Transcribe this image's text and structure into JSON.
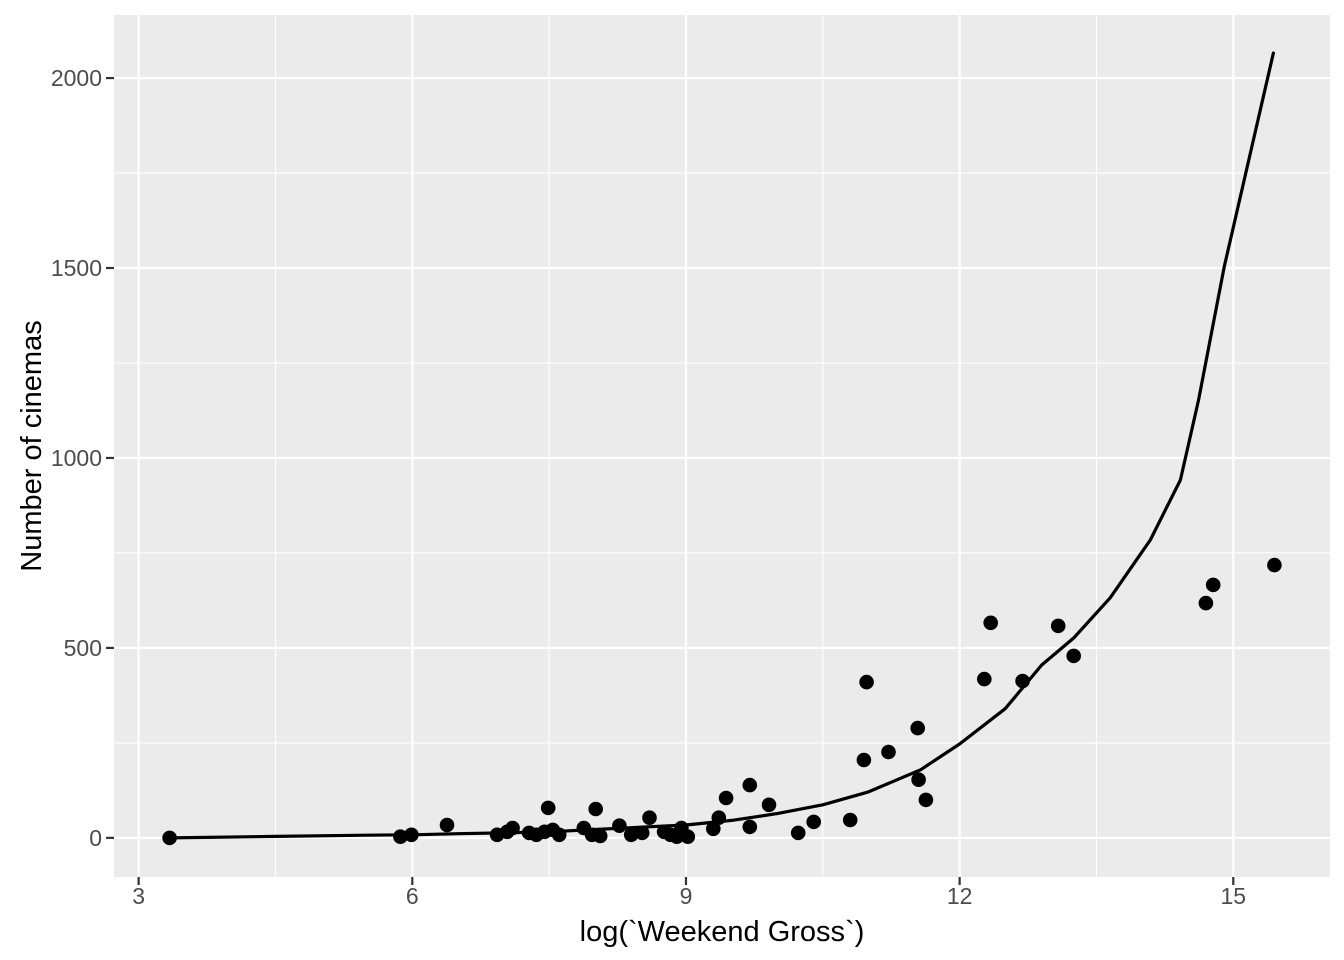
{
  "figure": {
    "background_color": "#FFFFFF",
    "panel_background_color": "#EBEBEB",
    "grid_color": "#FFFFFF",
    "point_color": "#000000",
    "smooth_line_color": "#000000",
    "tick_mark_color": "#333333",
    "tick_label_color": "#4D4D4D",
    "axis_title_color": "#000000"
  },
  "chart_data": {
    "type": "scatter",
    "title": "",
    "xlabel": "log(`Weekend Gross`)",
    "ylabel": "Number of cinemas",
    "legend": false,
    "grid": true,
    "x_major_ticks": [
      3,
      6,
      9,
      12,
      15
    ],
    "x_minor_ticks": [
      4.5,
      7.5,
      10.5,
      13.5
    ],
    "y_major_ticks": [
      0,
      500,
      1000,
      1500,
      2000
    ],
    "y_minor_ticks": [
      250,
      750,
      1250,
      1750
    ],
    "x_tick_labels": [
      "3",
      "6",
      "9",
      "12",
      "15"
    ],
    "y_tick_labels": [
      "0",
      "500",
      "1000",
      "1500",
      "2000"
    ],
    "xlim": [
      2.73,
      16.06
    ],
    "ylim": [
      -103,
      2166
    ],
    "points": [
      [
        3.34,
        0
      ],
      [
        5.87,
        3
      ],
      [
        5.99,
        8
      ],
      [
        6.38,
        34
      ],
      [
        6.93,
        8
      ],
      [
        7.04,
        16
      ],
      [
        7.1,
        26
      ],
      [
        7.28,
        13
      ],
      [
        7.36,
        8
      ],
      [
        7.45,
        16
      ],
      [
        7.49,
        79
      ],
      [
        7.54,
        21
      ],
      [
        7.61,
        8
      ],
      [
        7.88,
        26
      ],
      [
        7.97,
        8
      ],
      [
        8.01,
        76
      ],
      [
        8.06,
        5
      ],
      [
        8.27,
        32
      ],
      [
        8.4,
        8
      ],
      [
        8.52,
        13
      ],
      [
        8.6,
        53
      ],
      [
        8.76,
        16
      ],
      [
        8.83,
        8
      ],
      [
        8.9,
        3
      ],
      [
        8.95,
        26
      ],
      [
        9.02,
        3
      ],
      [
        9.3,
        24
      ],
      [
        9.36,
        53
      ],
      [
        9.44,
        105
      ],
      [
        9.7,
        139
      ],
      [
        9.7,
        29
      ],
      [
        9.91,
        87
      ],
      [
        10.23,
        13
      ],
      [
        10.4,
        42
      ],
      [
        10.8,
        47
      ],
      [
        10.95,
        205
      ],
      [
        10.98,
        410
      ],
      [
        11.22,
        226
      ],
      [
        11.54,
        289
      ],
      [
        11.55,
        153
      ],
      [
        11.63,
        100
      ],
      [
        12.27,
        418
      ],
      [
        12.34,
        566
      ],
      [
        12.69,
        413
      ],
      [
        13.08,
        558
      ],
      [
        13.25,
        479
      ],
      [
        14.7,
        618
      ],
      [
        14.78,
        666
      ],
      [
        15.45,
        718
      ]
    ],
    "smooth_line": [
      [
        3.34,
        0
      ],
      [
        4.5,
        4
      ],
      [
        5.5,
        7
      ],
      [
        6.0,
        8
      ],
      [
        6.5,
        11
      ],
      [
        7.0,
        13
      ],
      [
        7.5,
        16
      ],
      [
        8.0,
        22
      ],
      [
        8.5,
        28
      ],
      [
        9.0,
        34
      ],
      [
        9.5,
        46
      ],
      [
        10.0,
        64
      ],
      [
        10.5,
        87
      ],
      [
        11.0,
        121
      ],
      [
        11.57,
        179
      ],
      [
        12.0,
        247
      ],
      [
        12.5,
        340
      ],
      [
        12.9,
        455
      ],
      [
        13.25,
        526
      ],
      [
        13.65,
        632
      ],
      [
        14.09,
        784
      ],
      [
        14.42,
        942
      ],
      [
        14.62,
        1153
      ],
      [
        14.9,
        1503
      ],
      [
        15.44,
        2066
      ]
    ]
  }
}
